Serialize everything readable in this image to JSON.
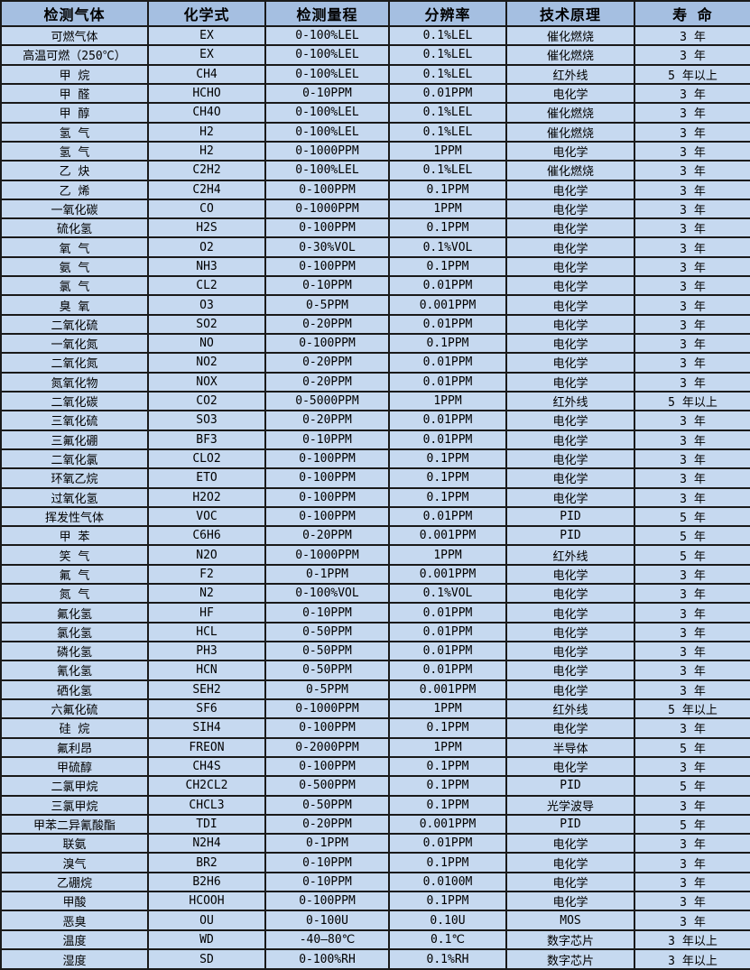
{
  "colors": {
    "header_bg": "#a5bfe1",
    "row_bg": "#c6d9f0",
    "border": "#1a1a1a",
    "text": "#000000"
  },
  "table": {
    "columns": [
      "检测气体",
      "化学式",
      "检测量程",
      "分辨率",
      "技术原理",
      "寿 命"
    ],
    "rows": [
      {
        "gas": "可燃气体",
        "formula": "EX",
        "range": "0-100%LEL",
        "resolution": "0.1%LEL",
        "principle": "催化燃烧",
        "life": "3 年"
      },
      {
        "gas": "高温可燃（250℃）",
        "formula": "EX",
        "range": "0-100%LEL",
        "resolution": "0.1%LEL",
        "principle": "催化燃烧",
        "life": "3 年"
      },
      {
        "gas": "甲 烷",
        "formula": "CH4",
        "range": "0-100%LEL",
        "resolution": "0.1%LEL",
        "principle": "红外线",
        "life": "5 年以上"
      },
      {
        "gas": "甲 醛",
        "formula": "HCHO",
        "range": "0-10PPM",
        "resolution": "0.01PPM",
        "principle": "电化学",
        "life": "3 年"
      },
      {
        "gas": "甲 醇",
        "formula": "CH4O",
        "range": "0-100%LEL",
        "resolution": "0.1%LEL",
        "principle": "催化燃烧",
        "life": "3 年"
      },
      {
        "gas": "氢 气",
        "formula": "H2",
        "range": "0-100%LEL",
        "resolution": "0.1%LEL",
        "principle": "催化燃烧",
        "life": "3 年"
      },
      {
        "gas": "氢 气",
        "formula": "H2",
        "range": "0-1000PPM",
        "resolution": "1PPM",
        "principle": "电化学",
        "life": "3 年"
      },
      {
        "gas": "乙 炔",
        "formula": "C2H2",
        "range": "0-100%LEL",
        "resolution": "0.1%LEL",
        "principle": "催化燃烧",
        "life": "3 年"
      },
      {
        "gas": "乙 烯",
        "formula": "C2H4",
        "range": "0-100PPM",
        "resolution": "0.1PPM",
        "principle": "电化学",
        "life": "3 年"
      },
      {
        "gas": "一氧化碳",
        "formula": "CO",
        "range": "0-1000PPM",
        "resolution": "1PPM",
        "principle": "电化学",
        "life": "3 年"
      },
      {
        "gas": "硫化氢",
        "formula": "H2S",
        "range": "0-100PPM",
        "resolution": "0.1PPM",
        "principle": "电化学",
        "life": "3 年"
      },
      {
        "gas": "氧 气",
        "formula": "O2",
        "range": "0-30%VOL",
        "resolution": "0.1%VOL",
        "principle": "电化学",
        "life": "3 年"
      },
      {
        "gas": "氨 气",
        "formula": "NH3",
        "range": "0-100PPM",
        "resolution": "0.1PPM",
        "principle": "电化学",
        "life": "3 年"
      },
      {
        "gas": "氯 气",
        "formula": "CL2",
        "range": "0-10PPM",
        "resolution": "0.01PPM",
        "principle": "电化学",
        "life": "3 年"
      },
      {
        "gas": "臭 氧",
        "formula": "O3",
        "range": "0-5PPM",
        "resolution": "0.001PPM",
        "principle": "电化学",
        "life": "3 年"
      },
      {
        "gas": "二氧化硫",
        "formula": "SO2",
        "range": "0-20PPM",
        "resolution": "0.01PPM",
        "principle": "电化学",
        "life": "3 年"
      },
      {
        "gas": "一氧化氮",
        "formula": "NO",
        "range": "0-100PPM",
        "resolution": "0.1PPM",
        "principle": "电化学",
        "life": "3 年"
      },
      {
        "gas": "二氧化氮",
        "formula": "NO2",
        "range": "0-20PPM",
        "resolution": "0.01PPM",
        "principle": "电化学",
        "life": "3 年"
      },
      {
        "gas": "氮氧化物",
        "formula": "NOX",
        "range": "0-20PPM",
        "resolution": "0.01PPM",
        "principle": "电化学",
        "life": "3 年"
      },
      {
        "gas": "二氧化碳",
        "formula": "CO2",
        "range": "0-5000PPM",
        "resolution": "1PPM",
        "principle": "红外线",
        "life": "5 年以上"
      },
      {
        "gas": "三氧化硫",
        "formula": "SO3",
        "range": "0-20PPM",
        "resolution": "0.01PPM",
        "principle": "电化学",
        "life": "3 年"
      },
      {
        "gas": "三氟化硼",
        "formula": "BF3",
        "range": "0-10PPM",
        "resolution": "0.01PPM",
        "principle": "电化学",
        "life": "3 年"
      },
      {
        "gas": "二氧化氯",
        "formula": "CLO2",
        "range": "0-100PPM",
        "resolution": "0.1PPM",
        "principle": "电化学",
        "life": "3 年"
      },
      {
        "gas": "环氧乙烷",
        "formula": "ETO",
        "range": "0-100PPM",
        "resolution": "0.1PPM",
        "principle": "电化学",
        "life": "3 年"
      },
      {
        "gas": "过氧化氢",
        "formula": "H2O2",
        "range": "0-100PPM",
        "resolution": "0.1PPM",
        "principle": "电化学",
        "life": "3 年"
      },
      {
        "gas": "挥发性气体",
        "formula": "VOC",
        "range": "0-100PPM",
        "resolution": "0.01PPM",
        "principle": "PID",
        "life": "5 年"
      },
      {
        "gas": "甲 苯",
        "formula": "C6H6",
        "range": "0-20PPM",
        "resolution": "0.001PPM",
        "principle": "PID",
        "life": "5 年"
      },
      {
        "gas": "笑 气",
        "formula": "N2O",
        "range": "0-1000PPM",
        "resolution": "1PPM",
        "principle": "红外线",
        "life": "5 年"
      },
      {
        "gas": "氟 气",
        "formula": "F2",
        "range": "0-1PPM",
        "resolution": "0.001PPM",
        "principle": "电化学",
        "life": "3 年"
      },
      {
        "gas": "氮 气",
        "formula": "N2",
        "range": "0-100%VOL",
        "resolution": "0.1%VOL",
        "principle": "电化学",
        "life": "3 年"
      },
      {
        "gas": "氟化氢",
        "formula": "HF",
        "range": "0-10PPM",
        "resolution": "0.01PPM",
        "principle": "电化学",
        "life": "3 年"
      },
      {
        "gas": "氯化氢",
        "formula": "HCL",
        "range": "0-50PPM",
        "resolution": "0.01PPM",
        "principle": "电化学",
        "life": "3 年"
      },
      {
        "gas": "磷化氢",
        "formula": "PH3",
        "range": "0-50PPM",
        "resolution": "0.01PPM",
        "principle": "电化学",
        "life": "3 年"
      },
      {
        "gas": "氰化氢",
        "formula": "HCN",
        "range": "0-50PPM",
        "resolution": "0.01PPM",
        "principle": "电化学",
        "life": "3 年"
      },
      {
        "gas": "硒化氢",
        "formula": "SEH2",
        "range": "0-5PPM",
        "resolution": "0.001PPM",
        "principle": "电化学",
        "life": "3 年"
      },
      {
        "gas": "六氟化硫",
        "formula": "SF6",
        "range": "0-1000PPM",
        "resolution": "1PPM",
        "principle": "红外线",
        "life": "5 年以上"
      },
      {
        "gas": "硅 烷",
        "formula": "SIH4",
        "range": "0-100PPM",
        "resolution": "0.1PPM",
        "principle": "电化学",
        "life": "3 年"
      },
      {
        "gas": "氟利昂",
        "formula": "FREON",
        "range": "0-2000PPM",
        "resolution": "1PPM",
        "principle": "半导体",
        "life": "5 年"
      },
      {
        "gas": "甲硫醇",
        "formula": "CH4S",
        "range": "0-100PPM",
        "resolution": "0.1PPM",
        "principle": "电化学",
        "life": "3 年"
      },
      {
        "gas": "二氯甲烷",
        "formula": "CH2CL2",
        "range": "0-500PPM",
        "resolution": "0.1PPM",
        "principle": "PID",
        "life": "5 年"
      },
      {
        "gas": "三氯甲烷",
        "formula": "CHCL3",
        "range": "0-50PPM",
        "resolution": "0.1PPM",
        "principle": "光学波导",
        "life": "3 年"
      },
      {
        "gas": "甲苯二异氰酸酯",
        "formula": "TDI",
        "range": "0-20PPM",
        "resolution": "0.001PPM",
        "principle": "PID",
        "life": "5 年"
      },
      {
        "gas": "联氨",
        "formula": "N2H4",
        "range": "0-1PPM",
        "resolution": "0.01PPM",
        "principle": "电化学",
        "life": "3 年"
      },
      {
        "gas": "溴气",
        "formula": "BR2",
        "range": "0-10PPM",
        "resolution": "0.1PPM",
        "principle": "电化学",
        "life": "3 年"
      },
      {
        "gas": "乙硼烷",
        "formula": "B2H6",
        "range": "0-10PPM",
        "resolution": "0.0100M",
        "principle": "电化学",
        "life": "3 年"
      },
      {
        "gas": "甲酸",
        "formula": "HCOOH",
        "range": "0-100PPM",
        "resolution": "0.1PPM",
        "principle": "电化学",
        "life": "3 年"
      },
      {
        "gas": "恶臭",
        "formula": "OU",
        "range": "0-100U",
        "resolution": "0.10U",
        "principle": "MOS",
        "life": "3 年"
      },
      {
        "gas": "温度",
        "formula": "WD",
        "range": "-40—80℃",
        "resolution": "0.1℃",
        "principle": "数字芯片",
        "life": "3 年以上"
      },
      {
        "gas": "湿度",
        "formula": "SD",
        "range": "0-100%RH",
        "resolution": "0.1%RH",
        "principle": "数字芯片",
        "life": "3 年以上"
      }
    ]
  }
}
